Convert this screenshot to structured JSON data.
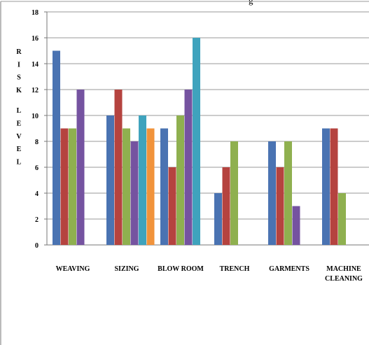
{
  "top_text": "g",
  "chart_data": {
    "type": "bar",
    "title": "",
    "xlabel": "",
    "ylabel": "RISK LEVEL",
    "ylim": [
      0,
      18
    ],
    "yticks": [
      0,
      2,
      4,
      6,
      8,
      10,
      12,
      14,
      16,
      18
    ],
    "grid": true,
    "legend": "none",
    "categories": [
      "WEAVING",
      "SIZING",
      "BLOW ROOM",
      "TRENCH",
      "GARMENTS",
      "MACHINE CLEANING"
    ],
    "category_lines": [
      [
        "WEAVING"
      ],
      [
        "SIZING"
      ],
      [
        "BLOW ROOM"
      ],
      [
        "TRENCH"
      ],
      [
        "GARMENTS"
      ],
      [
        "MACHINE",
        "CLEANING"
      ]
    ],
    "series": [
      {
        "color": "#4a73b2",
        "values": [
          15,
          10,
          9,
          4,
          8,
          9
        ]
      },
      {
        "color": "#b5433f",
        "values": [
          9,
          12,
          6,
          6,
          6,
          9
        ]
      },
      {
        "color": "#8fb04f",
        "values": [
          9,
          9,
          10,
          8,
          8,
          4
        ]
      },
      {
        "color": "#7553a0",
        "values": [
          12,
          8,
          12,
          null,
          3,
          null
        ]
      },
      {
        "color": "#3fa3bd",
        "values": [
          null,
          10,
          16,
          null,
          null,
          null
        ]
      },
      {
        "color": "#f1933b",
        "values": [
          null,
          9,
          null,
          null,
          null,
          null
        ]
      }
    ]
  }
}
